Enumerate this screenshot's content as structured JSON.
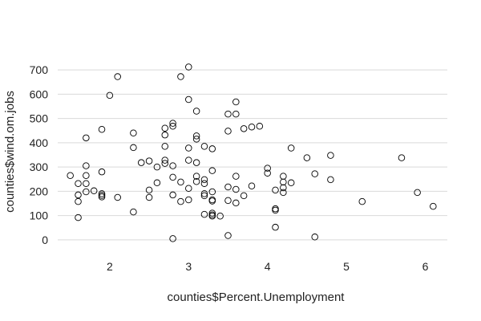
{
  "chart_data": {
    "type": "scatter",
    "title": "",
    "xlabel": "counties$Percent.Unemployment",
    "ylabel": "counties$wind.om.jobs",
    "xlim": [
      1.3,
      6.3
    ],
    "ylim": [
      -30,
      730
    ],
    "x_ticks": [
      2,
      3,
      4,
      5,
      6
    ],
    "y_ticks": [
      0,
      100,
      200,
      300,
      400,
      500,
      600,
      700
    ],
    "grid": "horizontal",
    "legend": "none",
    "point_color": "#000000",
    "grid_color": "#d9d9d9",
    "series": [
      {
        "points": [
          [
            1.5,
            265
          ],
          [
            1.6,
            232
          ],
          [
            1.6,
            185
          ],
          [
            1.6,
            158
          ],
          [
            1.6,
            92
          ],
          [
            1.7,
            420
          ],
          [
            1.7,
            305
          ],
          [
            1.7,
            265
          ],
          [
            1.7,
            232
          ],
          [
            1.7,
            198
          ],
          [
            1.8,
            202
          ],
          [
            1.9,
            455
          ],
          [
            1.9,
            280
          ],
          [
            1.9,
            190
          ],
          [
            1.9,
            183
          ],
          [
            1.9,
            177
          ],
          [
            2.0,
            595
          ],
          [
            2.1,
            672
          ],
          [
            2.1,
            175
          ],
          [
            2.3,
            440
          ],
          [
            2.3,
            380
          ],
          [
            2.3,
            115
          ],
          [
            2.4,
            318
          ],
          [
            2.5,
            325
          ],
          [
            2.5,
            205
          ],
          [
            2.5,
            175
          ],
          [
            2.6,
            300
          ],
          [
            2.6,
            235
          ],
          [
            2.7,
            460
          ],
          [
            2.7,
            432
          ],
          [
            2.7,
            385
          ],
          [
            2.7,
            328
          ],
          [
            2.7,
            315
          ],
          [
            2.8,
            480
          ],
          [
            2.8,
            468
          ],
          [
            2.8,
            305
          ],
          [
            2.8,
            258
          ],
          [
            2.8,
            185
          ],
          [
            2.8,
            5
          ],
          [
            2.9,
            672
          ],
          [
            2.9,
            238
          ],
          [
            2.9,
            158
          ],
          [
            3.0,
            712
          ],
          [
            3.0,
            578
          ],
          [
            3.0,
            378
          ],
          [
            3.0,
            328
          ],
          [
            3.0,
            212
          ],
          [
            3.0,
            165
          ],
          [
            3.1,
            530
          ],
          [
            3.1,
            428
          ],
          [
            3.1,
            415
          ],
          [
            3.1,
            318
          ],
          [
            3.1,
            262
          ],
          [
            3.1,
            240
          ],
          [
            3.2,
            385
          ],
          [
            3.2,
            248
          ],
          [
            3.2,
            232
          ],
          [
            3.2,
            190
          ],
          [
            3.2,
            182
          ],
          [
            3.2,
            105
          ],
          [
            3.3,
            375
          ],
          [
            3.3,
            285
          ],
          [
            3.3,
            198
          ],
          [
            3.3,
            165
          ],
          [
            3.3,
            160
          ],
          [
            3.3,
            110
          ],
          [
            3.3,
            103
          ],
          [
            3.3,
            98
          ],
          [
            3.4,
            98
          ],
          [
            3.5,
            518
          ],
          [
            3.5,
            448
          ],
          [
            3.5,
            218
          ],
          [
            3.5,
            162
          ],
          [
            3.5,
            18
          ],
          [
            3.6,
            568
          ],
          [
            3.6,
            518
          ],
          [
            3.6,
            262
          ],
          [
            3.6,
            208
          ],
          [
            3.6,
            152
          ],
          [
            3.7,
            458
          ],
          [
            3.7,
            182
          ],
          [
            3.8,
            465
          ],
          [
            3.8,
            222
          ],
          [
            3.9,
            468
          ],
          [
            4.0,
            295
          ],
          [
            4.0,
            275
          ],
          [
            4.1,
            205
          ],
          [
            4.1,
            128
          ],
          [
            4.1,
            122
          ],
          [
            4.1,
            52
          ],
          [
            4.2,
            262
          ],
          [
            4.2,
            238
          ],
          [
            4.2,
            215
          ],
          [
            4.2,
            195
          ],
          [
            4.3,
            378
          ],
          [
            4.3,
            235
          ],
          [
            4.5,
            338
          ],
          [
            4.6,
            272
          ],
          [
            4.6,
            12
          ],
          [
            4.8,
            348
          ],
          [
            4.8,
            248
          ],
          [
            5.2,
            158
          ],
          [
            5.7,
            338
          ],
          [
            5.9,
            195
          ],
          [
            6.1,
            138
          ]
        ]
      }
    ]
  }
}
